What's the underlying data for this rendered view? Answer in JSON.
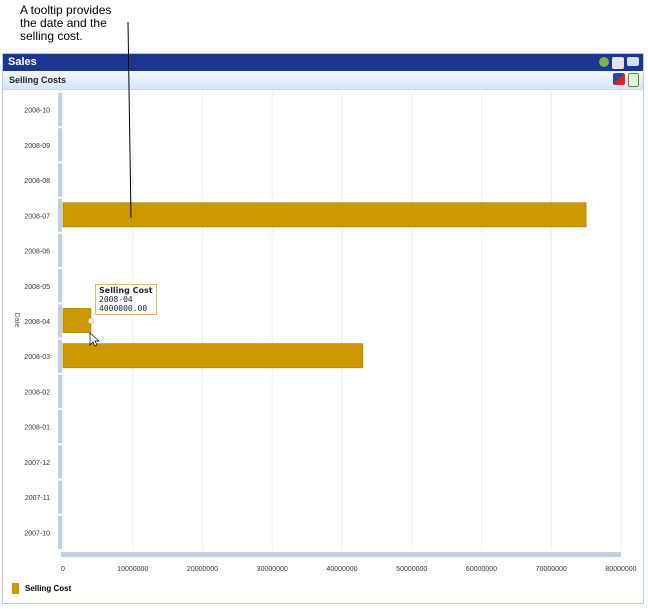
{
  "annotation": "A tooltip provides the date and the selling cost.",
  "panel": {
    "title": "Sales",
    "subtitle": "Selling Costs",
    "title_icons": [
      "add-icon",
      "print-icon",
      "email-icon"
    ],
    "sub_icons": [
      "filter-icon",
      "document-icon"
    ]
  },
  "tooltip": {
    "title": "Selling Cost",
    "date": "2008-04",
    "value": "4000000.00"
  },
  "chart_data": {
    "type": "bar",
    "orientation": "horizontal",
    "categories": [
      "2008-10",
      "2008-09",
      "2008-08",
      "2008-07",
      "2008-06",
      "2008-05",
      "2008-04",
      "2008-03",
      "2008-02",
      "2008-01",
      "2007-12",
      "2007-11",
      "2007-10"
    ],
    "series": [
      {
        "name": "Selling Cost",
        "values": [
          0,
          0,
          0,
          75000000,
          0,
          0,
          4000000,
          43000000,
          0,
          0,
          0,
          0,
          0
        ],
        "color": "#cc9900"
      }
    ],
    "ylabel": "Date",
    "xlabel": "",
    "xlim": [
      0,
      80000000
    ],
    "xticks": [
      "0",
      "10000000",
      "20000000",
      "30000000",
      "40000000",
      "50000000",
      "60000000",
      "70000000",
      "80000000"
    ],
    "grid": true,
    "legend": "bottom-left"
  }
}
